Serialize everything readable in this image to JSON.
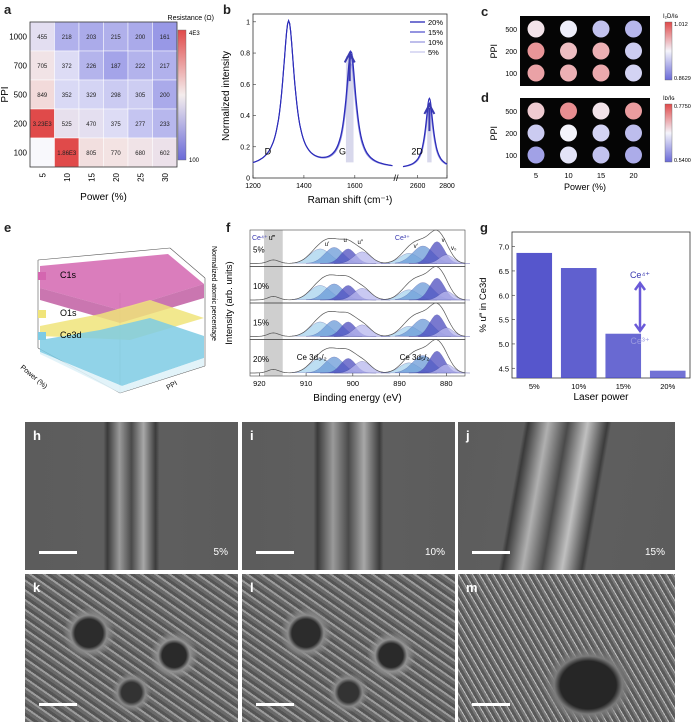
{
  "panels": {
    "a": {
      "label": "a",
      "ylabel": "PPI",
      "xlabel": "Power (%)",
      "colorbar_title": "Resistance (Ω)",
      "colorbar_max": "4E3",
      "colorbar_min": "100",
      "rows": [
        "1000",
        "700",
        "500",
        "200",
        "100"
      ],
      "cols": [
        "5",
        "10",
        "15",
        "20",
        "25",
        "30"
      ],
      "cells": [
        [
          "455",
          "218",
          "203",
          "215",
          "200",
          "161"
        ],
        [
          "705",
          "372",
          "226",
          "187",
          "222",
          "217"
        ],
        [
          "849",
          "352",
          "329",
          "298",
          "305",
          "200"
        ],
        [
          "3.23E3",
          "525",
          "470",
          "375",
          "277",
          "233"
        ],
        [
          "",
          "1.86E3",
          "805",
          "770",
          "680",
          "602"
        ]
      ]
    },
    "b": {
      "label": "b",
      "xlabel": "Raman shift (cm⁻¹)",
      "ylabel": "Normalized intensity",
      "peaks": [
        "D",
        "G",
        "2D"
      ],
      "yticks": [
        "0",
        "0.2",
        "0.4",
        "0.6",
        "0.8",
        "1"
      ],
      "xticks": [
        "1200",
        "1400",
        "1600",
        "2600",
        "2800"
      ],
      "legend": [
        "20%",
        "15%",
        "10%",
        "5%"
      ]
    },
    "c": {
      "label": "c",
      "ylabel": "PPI",
      "yticks": [
        "500",
        "200",
        "100"
      ],
      "colorbar_title": "I₂D/Iɢ",
      "colorbar_max": "1.012",
      "colorbar_min": "0.8629"
    },
    "d": {
      "label": "d",
      "ylabel": "PPI",
      "yticks": [
        "500",
        "200",
        "100"
      ],
      "xlabel": "Power (%)",
      "xticks": [
        "5",
        "10",
        "15",
        "20"
      ],
      "colorbar_title": "Iᴅ/Iɢ",
      "colorbar_max": "0.7750",
      "colorbar_min": "0.5400"
    },
    "e": {
      "label": "e",
      "zlabel": "Normalized atomic percentage",
      "layers": [
        "C1s",
        "O1s",
        "Ce3d"
      ],
      "xaxis": "Power (%)",
      "yaxis": "PPI"
    },
    "f": {
      "label": "f",
      "xlabel": "Binding energy (eV)",
      "ylabel": "Intensity (arb. units)",
      "rows": [
        "5%",
        "10%",
        "15%",
        "20%"
      ],
      "xticks": [
        "920",
        "910",
        "900",
        "890",
        "880"
      ],
      "tags": [
        "Ce⁴⁺",
        "u‴",
        "u′",
        "u",
        "u″",
        "Ce³⁺",
        "v′",
        "v",
        "v₀"
      ],
      "ce32": "Ce 3d₃/₂",
      "ce52": "Ce 3d₅/₂"
    },
    "g": {
      "label": "g",
      "ylabel": "% u‴ in Ce3d",
      "xlabel": "Laser power",
      "yticks": [
        "4.5",
        "5.0",
        "5.5",
        "6.0",
        "6.5",
        "7.0"
      ],
      "ce4": "Ce⁴⁺",
      "ce3": "Ce³⁺"
    },
    "sem": [
      {
        "label": "h",
        "power": "5%"
      },
      {
        "label": "i",
        "power": "10%"
      },
      {
        "label": "j",
        "power": "15%"
      },
      {
        "label": "k",
        "power": ""
      },
      {
        "label": "l",
        "power": ""
      },
      {
        "label": "m",
        "power": ""
      }
    ]
  },
  "chart_data": [
    {
      "type": "bar",
      "panel": "g",
      "categories": [
        "5%",
        "10%",
        "15%",
        "20%"
      ],
      "values": [
        6.87,
        6.56,
        5.21,
        4.45
      ],
      "ylabel": "% u‴ in Ce3d",
      "xlabel": "Laser power",
      "ylim": [
        4.3,
        7.3
      ],
      "color": "#4848c8"
    },
    {
      "type": "line",
      "panel": "b",
      "series": [
        {
          "name": "20%",
          "color": "#2a2ab8"
        },
        {
          "name": "15%",
          "color": "#5a5ad0"
        },
        {
          "name": "10%",
          "color": "#9a9ae0"
        },
        {
          "name": "5%",
          "color": "#c8c8ee"
        }
      ],
      "xlabel": "Raman shift (cm⁻¹)",
      "ylabel": "Normalized intensity",
      "ylim": [
        0,
        1.05
      ]
    }
  ],
  "colors": {
    "heat_low": "#6a6ad8",
    "heat_high": "#e04a4a",
    "bar": "#4848c8"
  }
}
